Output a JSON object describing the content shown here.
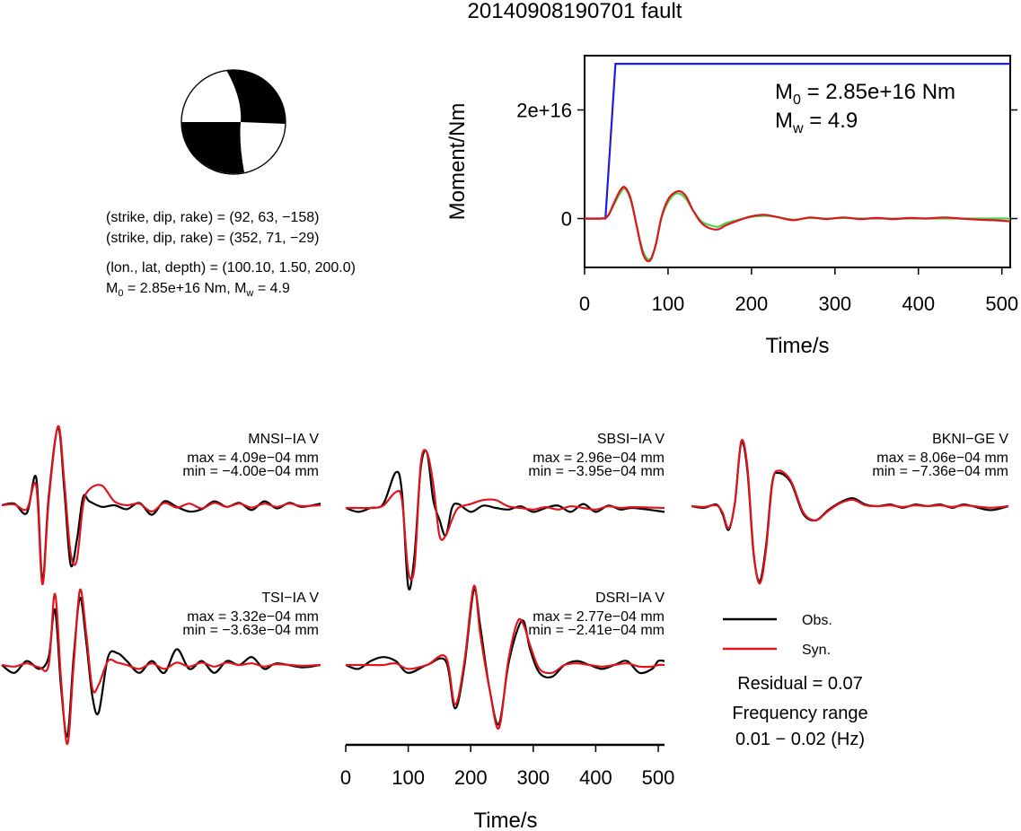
{
  "title": "20140908190701 fault",
  "mechanism": {
    "planes": [
      {
        "text": "(strike, dip, rake) = (92, 63, −158)",
        "strike": 92,
        "dip": 63,
        "rake": -158
      },
      {
        "text": "(strike, dip, rake) = (352, 71, −29)",
        "strike": 352,
        "dip": 71,
        "rake": -29
      }
    ],
    "location_text": "(lon., lat, depth) = (100.10, 1.50, 200.0)",
    "m0_label": "M",
    "m0_sub": "0",
    "m0_rest": " = 2.85e+16 Nm, M",
    "mw_sub": "w",
    "mw_rest": " = 4.9"
  },
  "moment_panel": {
    "ylabel": "Moment/Nm",
    "xlabel": "Time/s",
    "annotation_m0": {
      "main": "M",
      "sub": "0",
      "rest": " = 2.85e+16 Nm"
    },
    "annotation_mw": {
      "main": "M",
      "sub": "w",
      "rest": " = 4.9"
    }
  },
  "waveform_panels": [
    {
      "station": "MNSI−IA V",
      "max": "max = 4.09e−04 mm",
      "min": "min = −4.00e−04 mm"
    },
    {
      "station": "SBSI−IA V",
      "max": "max = 2.96e−04 mm",
      "min": "min = −3.95e−04 mm"
    },
    {
      "station": "BKNI−GE V",
      "max": "max = 8.06e−04 mm",
      "min": "min = −7.36e−04 mm"
    },
    {
      "station": "TSI−IA V",
      "max": "max = 3.32e−04 mm",
      "min": "min = −3.63e−04 mm"
    },
    {
      "station": "DSRI−IA V",
      "max": "max = 2.77e−04 mm",
      "min": "min = −2.41e−04 mm"
    }
  ],
  "waveform_axis": {
    "xlabel": "Time/s"
  },
  "legend": {
    "obs": "Obs.",
    "syn": "Syn."
  },
  "residual": "Residual = 0.07",
  "freq_title": "Frequency range",
  "freq_value": "0.01 − 0.02 (Hz)",
  "colors": {
    "obs": "#000000",
    "syn": "#e0141e",
    "cumulative": "#1f1fd0",
    "moment_rate_obs": "#4ad24a",
    "moment_rate_syn": "#e0141e"
  },
  "chart_data": [
    {
      "type": "line",
      "panel": "moment",
      "xlabel": "Time/s",
      "ylabel": "Moment/Nm",
      "xlim": [
        0,
        510
      ],
      "xticks": [
        0,
        100,
        200,
        300,
        400,
        500
      ],
      "yticks": [
        0,
        2e+16
      ],
      "ytick_labels": [
        "0",
        "2e+16"
      ],
      "ylim": [
        -9000000000000000.0,
        3e+16
      ],
      "series": [
        {
          "color_key": "cumulative",
          "x": [
            0,
            25,
            37,
            510
          ],
          "y": [
            0,
            0,
            2.85e+16,
            2.85e+16
          ]
        },
        {
          "color_key": "moment_rate_obs",
          "x": [
            0,
            20,
            28,
            35,
            42,
            48,
            55,
            62,
            70,
            78,
            85,
            92,
            100,
            108,
            115,
            122,
            130,
            140,
            150,
            160,
            170,
            185,
            200,
            215,
            230,
            250,
            270,
            290,
            310,
            330,
            350,
            370,
            390,
            410,
            430,
            450,
            470,
            490,
            510
          ],
          "y": [
            0,
            0,
            500000000000000.0,
            2500000000000000.0,
            4500000000000000.0,
            5500000000000000.0,
            3500000000000000.0,
            -1000000000000000.0,
            -6000000000000000.0,
            -7500000000000000.0,
            -5000000000000000.0,
            0.0,
            3000000000000000.0,
            4500000000000000.0,
            4500000000000000.0,
            3500000000000000.0,
            1500000000000000.0,
            -500000000000000.0,
            -1200000000000000.0,
            -1500000000000000.0,
            -800000000000000.0,
            -200000000000000.0,
            300000000000000.0,
            500000000000000.0,
            300000000000000.0,
            -200000000000000.0,
            100000000000000.0,
            0.0,
            100000000000000.0,
            0.0,
            0.0,
            0.0,
            0.0,
            0.0,
            0.0,
            0.0,
            0.0,
            0.0,
            0.0
          ]
        },
        {
          "color_key": "moment_rate_syn",
          "x": [
            0,
            20,
            28,
            35,
            42,
            48,
            55,
            62,
            70,
            78,
            85,
            92,
            100,
            108,
            115,
            122,
            130,
            140,
            150,
            160,
            170,
            185,
            200,
            215,
            230,
            250,
            270,
            290,
            310,
            330,
            350,
            370,
            390,
            410,
            430,
            450,
            470,
            490,
            510
          ],
          "y": [
            0,
            0,
            500000000000000.0,
            2800000000000000.0,
            5000000000000000.0,
            5800000000000000.0,
            3800000000000000.0,
            -1000000000000000.0,
            -6500000000000000.0,
            -7800000000000000.0,
            -5000000000000000.0,
            200000000000000.0,
            3500000000000000.0,
            4800000000000000.0,
            5000000000000000.0,
            4000000000000000.0,
            1500000000000000.0,
            -800000000000000.0,
            -1800000000000000.0,
            -2000000000000000.0,
            -1200000000000000.0,
            -300000000000000.0,
            400000000000000.0,
            700000000000000.0,
            300000000000000.0,
            -300000000000000.0,
            200000000000000.0,
            -100000000000000.0,
            200000000000000.0,
            -100000000000000.0,
            100000000000000.0,
            -100000000000000.0,
            100000000000000.0,
            0.0,
            200000000000000.0,
            0.0,
            -200000000000000.0,
            -300000000000000.0,
            -500000000000000.0
          ]
        }
      ]
    },
    {
      "type": "line",
      "panel": "waveforms",
      "xlabel": "Time/s",
      "xlim": [
        0,
        510
      ],
      "xticks": [
        0,
        100,
        200,
        300,
        400,
        500
      ],
      "traces": [
        {
          "station": "MNSI−IA V",
          "x": [
            0,
            20,
            40,
            55,
            65,
            75,
            90,
            100,
            110,
            120,
            130,
            140,
            160,
            180,
            200,
            220,
            240,
            260,
            280,
            300,
            320,
            340,
            360,
            380,
            400,
            420,
            440,
            460,
            480,
            510
          ],
          "obs": [
            0,
            0.02,
            -0.1,
            0.35,
            -0.95,
            0.1,
            0.98,
            0.2,
            -0.75,
            -0.45,
            0.1,
            0.05,
            -0.02,
            0.0,
            -0.05,
            0.03,
            -0.12,
            0.05,
            -0.02,
            -0.08,
            -0.05,
            0.05,
            -0.02,
            0.03,
            -0.06,
            0.05,
            -0.04,
            0.03,
            -0.02,
            0.02
          ],
          "syn": [
            0,
            0.01,
            -0.05,
            0.25,
            -1.0,
            0.05,
            1.0,
            0.3,
            -0.6,
            -0.7,
            0.0,
            0.2,
            0.25,
            0.05,
            0.0,
            0.02,
            -0.08,
            0.03,
            -0.03,
            0.02,
            -0.04,
            0.03,
            -0.02,
            0.02,
            -0.03,
            0.02,
            -0.02,
            0.02,
            -0.01,
            0.0
          ]
        },
        {
          "station": "SBSI−IA V",
          "x": [
            0,
            20,
            40,
            60,
            80,
            90,
            100,
            110,
            120,
            130,
            140,
            150,
            160,
            170,
            180,
            200,
            220,
            240,
            260,
            280,
            300,
            320,
            340,
            360,
            380,
            400,
            420,
            440,
            460,
            510
          ],
          "obs": [
            0,
            -0.05,
            0.0,
            0.05,
            0.45,
            0.2,
            -1.0,
            -0.6,
            0.5,
            0.7,
            0.1,
            -0.15,
            -0.35,
            0.0,
            0.05,
            -0.05,
            0.03,
            0.0,
            -0.02,
            0.02,
            -0.05,
            0.0,
            0.03,
            -0.05,
            0.05,
            -0.05,
            0.03,
            -0.02,
            0.0,
            -0.05
          ],
          "syn": [
            0,
            0.0,
            0.0,
            0.03,
            0.2,
            0.1,
            -0.8,
            -0.75,
            0.55,
            0.7,
            0.3,
            -0.35,
            -0.35,
            -0.15,
            0.0,
            0.05,
            0.1,
            0.1,
            0.02,
            0.0,
            -0.02,
            0.01,
            -0.02,
            0.02,
            0.0,
            -0.02,
            0.02,
            0.0,
            0.01,
            0.0
          ]
        },
        {
          "station": "BKNI−GE V",
          "x": [
            0,
            20,
            40,
            50,
            60,
            70,
            80,
            90,
            100,
            110,
            120,
            130,
            140,
            160,
            180,
            200,
            220,
            240,
            260,
            280,
            300,
            320,
            340,
            360,
            380,
            400,
            420,
            440,
            480,
            510
          ],
          "obs": [
            0,
            -0.02,
            0.02,
            -0.1,
            -0.3,
            0.05,
            0.8,
            0.45,
            -0.6,
            -0.95,
            -0.5,
            0.3,
            0.42,
            0.3,
            -0.1,
            -0.18,
            -0.05,
            0.05,
            0.1,
            0.02,
            0.0,
            0.02,
            -0.02,
            0.02,
            0.0,
            0.02,
            -0.02,
            0.02,
            -0.05,
            0.0
          ],
          "syn": [
            0,
            -0.01,
            0.01,
            -0.08,
            -0.28,
            0.05,
            0.82,
            0.5,
            -0.58,
            -0.98,
            -0.55,
            0.28,
            0.45,
            0.32,
            -0.08,
            -0.18,
            -0.06,
            0.04,
            0.08,
            0.01,
            0.0,
            0.01,
            -0.01,
            0.01,
            0.0,
            0.01,
            -0.01,
            0.01,
            -0.02,
            0.0
          ]
        },
        {
          "station": "TSI−IA V",
          "x": [
            0,
            20,
            40,
            60,
            75,
            85,
            95,
            105,
            115,
            125,
            135,
            145,
            155,
            170,
            185,
            200,
            220,
            240,
            260,
            280,
            300,
            320,
            340,
            360,
            380,
            400,
            420,
            440,
            480,
            510
          ],
          "obs": [
            0,
            -0.1,
            0.05,
            -0.05,
            0.1,
            0.7,
            -0.3,
            -0.9,
            0.1,
            0.85,
            0.3,
            -0.4,
            -0.6,
            0.1,
            0.15,
            0.05,
            -0.1,
            0.05,
            -0.1,
            0.2,
            -0.05,
            0.05,
            -0.1,
            0.05,
            0.0,
            0.1,
            -0.05,
            0.02,
            -0.03,
            0.0
          ],
          "syn": [
            0,
            -0.02,
            0.02,
            -0.03,
            0.0,
            0.9,
            -0.2,
            -1.0,
            0.0,
            0.95,
            0.4,
            -0.3,
            -0.25,
            0.05,
            0.03,
            0.0,
            -0.05,
            0.02,
            -0.05,
            0.03,
            -0.02,
            0.03,
            -0.02,
            0.03,
            0.0,
            0.02,
            -0.02,
            0.01,
            -0.01,
            0.0
          ]
        },
        {
          "station": "DSRI−IA V",
          "x": [
            0,
            20,
            40,
            60,
            80,
            100,
            130,
            160,
            175,
            190,
            205,
            215,
            230,
            245,
            260,
            275,
            285,
            295,
            310,
            330,
            350,
            370,
            390,
            410,
            430,
            450,
            470,
            490,
            500,
            510
          ],
          "obs": [
            0,
            -0.05,
            0.05,
            0.1,
            0.05,
            -0.1,
            0.0,
            0.05,
            -0.55,
            0.0,
            0.95,
            0.5,
            -0.3,
            -0.75,
            0.0,
            0.45,
            0.55,
            0.2,
            -0.1,
            -0.15,
            0.0,
            0.05,
            0.0,
            -0.05,
            0.0,
            0.05,
            -0.1,
            -0.05,
            0.05,
            0.05
          ],
          "syn": [
            0,
            0.0,
            0.0,
            0.0,
            0.02,
            -0.05,
            0.0,
            0.1,
            -0.5,
            0.05,
            1.0,
            0.4,
            -0.3,
            -0.8,
            0.05,
            0.55,
            0.5,
            0.25,
            -0.05,
            -0.1,
            0.0,
            0.02,
            0.0,
            -0.02,
            0.0,
            0.02,
            -0.02,
            -0.02,
            0.0,
            0.0
          ]
        }
      ]
    }
  ]
}
